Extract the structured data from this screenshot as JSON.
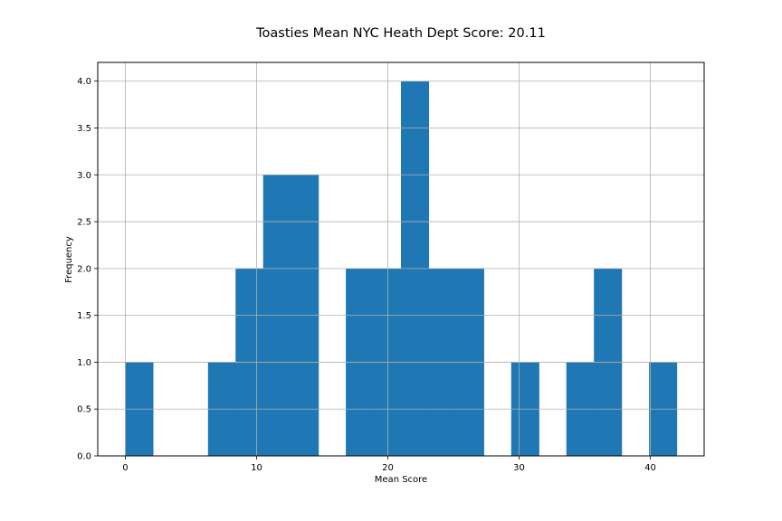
{
  "chart_data": {
    "type": "bar",
    "title": "Toasties Mean NYC Heath Dept Score: 20.11",
    "xlabel": "Mean Score",
    "ylabel": "Frequency",
    "xlim": [
      -2.1,
      44.1
    ],
    "ylim": [
      0,
      4.2
    ],
    "grid": true,
    "bar_color": "#1f77b4",
    "bins": [
      {
        "x0": 0.0,
        "x1": 2.1,
        "count": 1
      },
      {
        "x0": 2.1,
        "x1": 4.2,
        "count": 0
      },
      {
        "x0": 4.2,
        "x1": 6.3,
        "count": 0
      },
      {
        "x0": 6.3,
        "x1": 8.4,
        "count": 1
      },
      {
        "x0": 8.4,
        "x1": 10.5,
        "count": 2
      },
      {
        "x0": 10.5,
        "x1": 12.6,
        "count": 3
      },
      {
        "x0": 12.6,
        "x1": 14.7,
        "count": 3
      },
      {
        "x0": 14.7,
        "x1": 16.8,
        "count": 0
      },
      {
        "x0": 16.8,
        "x1": 18.9,
        "count": 2
      },
      {
        "x0": 18.9,
        "x1": 21.0,
        "count": 2
      },
      {
        "x0": 21.0,
        "x1": 23.1,
        "count": 4
      },
      {
        "x0": 23.1,
        "x1": 25.2,
        "count": 2
      },
      {
        "x0": 25.2,
        "x1": 27.3,
        "count": 2
      },
      {
        "x0": 27.3,
        "x1": 29.4,
        "count": 0
      },
      {
        "x0": 29.4,
        "x1": 31.5,
        "count": 1
      },
      {
        "x0": 31.5,
        "x1": 33.6,
        "count": 0
      },
      {
        "x0": 33.6,
        "x1": 35.7,
        "count": 1
      },
      {
        "x0": 35.7,
        "x1": 37.8,
        "count": 2
      },
      {
        "x0": 37.8,
        "x1": 39.9,
        "count": 0
      },
      {
        "x0": 39.9,
        "x1": 42.0,
        "count": 1
      }
    ],
    "x_ticks": [
      0,
      10,
      20,
      30,
      40
    ],
    "x_tick_labels": [
      "0",
      "10",
      "20",
      "30",
      "40"
    ],
    "y_ticks": [
      0,
      0.5,
      1,
      1.5,
      2,
      2.5,
      3,
      3.5,
      4
    ],
    "y_tick_labels": [
      "0.0",
      "0.5",
      "1.0",
      "1.5",
      "2.0",
      "2.5",
      "3.0",
      "3.5",
      "4.0"
    ]
  }
}
